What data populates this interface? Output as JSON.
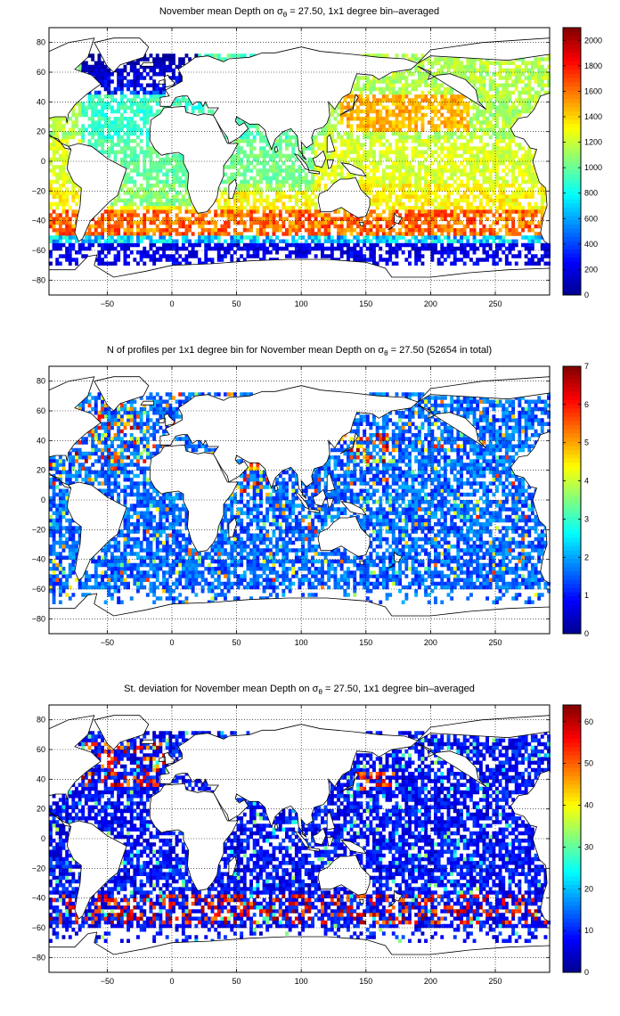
{
  "colormap": [
    "#00008f",
    "#0000ff",
    "#0080ff",
    "#00ffff",
    "#80ff80",
    "#ffff00",
    "#ff8000",
    "#ff0000",
    "#800000"
  ],
  "land_color": "#ffffff",
  "chart_data": [
    {
      "type": "heatmap",
      "title_prefix": "November mean Depth on ",
      "title_suffix": " = 27.50, 1x1 degree bin–averaged",
      "sigma_symbol": "σ",
      "sigma_subscript": "θ",
      "xlim": [
        -95,
        292
      ],
      "ylim": [
        -90,
        90
      ],
      "xticks": [
        -50,
        0,
        50,
        100,
        150,
        200,
        250
      ],
      "yticks": [
        -80,
        -60,
        -40,
        -20,
        0,
        20,
        40,
        60,
        80
      ],
      "grid": true,
      "grid_style": "dotted",
      "colorbar_range": [
        0,
        2100
      ],
      "colorbar_ticks": [
        0,
        200,
        400,
        600,
        800,
        1000,
        1200,
        1400,
        1600,
        1800,
        2000
      ],
      "field": "depth"
    },
    {
      "type": "heatmap",
      "title_prefix": "N of profiles per 1x1 degree bin for November mean Depth on ",
      "title_suffix": " = 27.50 (52654 in total)",
      "sigma_symbol": "σ",
      "sigma_subscript": "θ",
      "xlim": [
        -95,
        292
      ],
      "ylim": [
        -90,
        90
      ],
      "xticks": [
        -50,
        0,
        50,
        100,
        150,
        200,
        250
      ],
      "yticks": [
        -80,
        -60,
        -40,
        -20,
        0,
        20,
        40,
        60,
        80
      ],
      "grid": true,
      "grid_style": "dotted",
      "colorbar_range": [
        0,
        7
      ],
      "colorbar_ticks": [
        0,
        1,
        2,
        3,
        4,
        5,
        6,
        7
      ],
      "field": "count"
    },
    {
      "type": "heatmap",
      "title_prefix": "St. deviation for November mean Depth on ",
      "title_suffix": " = 27.50, 1x1 degree bin–averaged",
      "sigma_symbol": "σ",
      "sigma_subscript": "θ",
      "xlim": [
        -95,
        292
      ],
      "ylim": [
        -90,
        90
      ],
      "xticks": [
        -50,
        0,
        50,
        100,
        150,
        200,
        250
      ],
      "yticks": [
        -80,
        -60,
        -40,
        -20,
        0,
        20,
        40,
        60,
        80
      ],
      "grid": true,
      "grid_style": "dotted",
      "colorbar_range": [
        0,
        64
      ],
      "colorbar_ticks": [
        0,
        10,
        20,
        30,
        40,
        50,
        60
      ],
      "field": "std"
    }
  ]
}
